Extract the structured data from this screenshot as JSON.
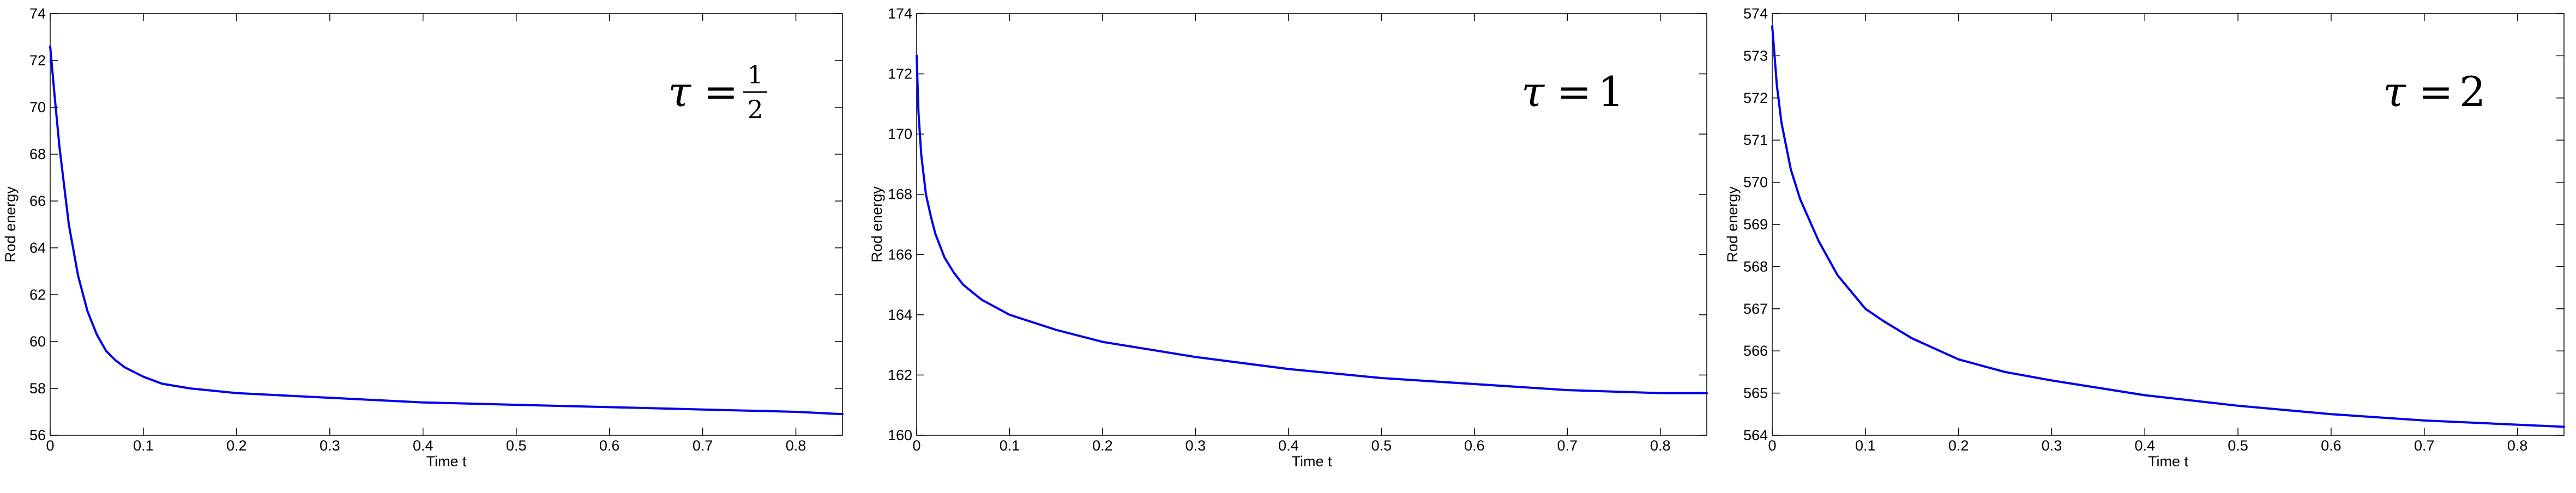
{
  "chart_data": [
    {
      "type": "line",
      "annotation": {
        "prefix": "τ",
        "eq": "=",
        "value": "1/2",
        "numerator": "1",
        "denominator": "2"
      },
      "xlabel": "Time t",
      "ylabel": "Rod energy",
      "xlim": [
        0,
        0.85
      ],
      "ylim": [
        56,
        74
      ],
      "xticks": [
        "0",
        "0.1",
        "0.2",
        "0.3",
        "0.4",
        "0.5",
        "0.6",
        "0.7",
        "0.8"
      ],
      "yticks": [
        "56",
        "58",
        "60",
        "62",
        "64",
        "66",
        "68",
        "70",
        "72",
        "74"
      ],
      "grid": false,
      "color": "#0000ee",
      "series": [
        {
          "x": [
            0,
            0.005,
            0.01,
            0.02,
            0.03,
            0.04,
            0.05,
            0.06,
            0.07,
            0.08,
            0.1,
            0.12,
            0.15,
            0.2,
            0.3,
            0.4,
            0.5,
            0.6,
            0.7,
            0.8,
            0.85
          ],
          "y": [
            72.6,
            70.4,
            68.3,
            65.0,
            62.8,
            61.3,
            60.3,
            59.6,
            59.2,
            58.9,
            58.5,
            58.2,
            58.0,
            57.8,
            57.6,
            57.4,
            57.3,
            57.2,
            57.1,
            57.0,
            56.9
          ]
        }
      ]
    },
    {
      "type": "line",
      "annotation": {
        "prefix": "τ",
        "eq": "=",
        "value": "1"
      },
      "xlabel": "Time t",
      "ylabel": "Rod energy",
      "xlim": [
        0,
        0.85
      ],
      "ylim": [
        160,
        174
      ],
      "xticks": [
        "0",
        "0.1",
        "0.2",
        "0.3",
        "0.4",
        "0.5",
        "0.6",
        "0.7",
        "0.8"
      ],
      "yticks": [
        "160",
        "162",
        "164",
        "166",
        "168",
        "170",
        "172",
        "174"
      ],
      "grid": false,
      "color": "#0000ee",
      "series": [
        {
          "x": [
            0,
            0.002,
            0.005,
            0.01,
            0.015,
            0.02,
            0.03,
            0.04,
            0.05,
            0.07,
            0.1,
            0.15,
            0.2,
            0.3,
            0.4,
            0.5,
            0.6,
            0.7,
            0.8,
            0.85
          ],
          "y": [
            172.6,
            170.7,
            169.3,
            168.0,
            167.3,
            166.7,
            165.9,
            165.4,
            165.0,
            164.5,
            164.0,
            163.5,
            163.1,
            162.6,
            162.2,
            161.9,
            161.7,
            161.5,
            161.4,
            161.4
          ]
        }
      ]
    },
    {
      "type": "line",
      "annotation": {
        "prefix": "τ",
        "eq": "=",
        "value": "2"
      },
      "xlabel": "Time t",
      "ylabel": "Rod energy",
      "xlim": [
        0,
        0.85
      ],
      "ylim": [
        564,
        574
      ],
      "xticks": [
        "0",
        "0.1",
        "0.2",
        "0.3",
        "0.4",
        "0.5",
        "0.6",
        "0.7",
        "0.8"
      ],
      "yticks": [
        "564",
        "565",
        "566",
        "567",
        "568",
        "569",
        "570",
        "571",
        "572",
        "573",
        "574"
      ],
      "grid": false,
      "color": "#0000ee",
      "series": [
        {
          "x": [
            0,
            0.005,
            0.01,
            0.02,
            0.03,
            0.05,
            0.07,
            0.1,
            0.12,
            0.15,
            0.2,
            0.25,
            0.3,
            0.4,
            0.5,
            0.6,
            0.7,
            0.8,
            0.85
          ],
          "y": [
            573.7,
            572.3,
            571.4,
            570.3,
            569.6,
            568.6,
            567.8,
            567.0,
            566.7,
            566.3,
            565.8,
            565.5,
            565.3,
            564.95,
            564.7,
            564.5,
            564.35,
            564.25,
            564.2
          ]
        }
      ]
    }
  ]
}
